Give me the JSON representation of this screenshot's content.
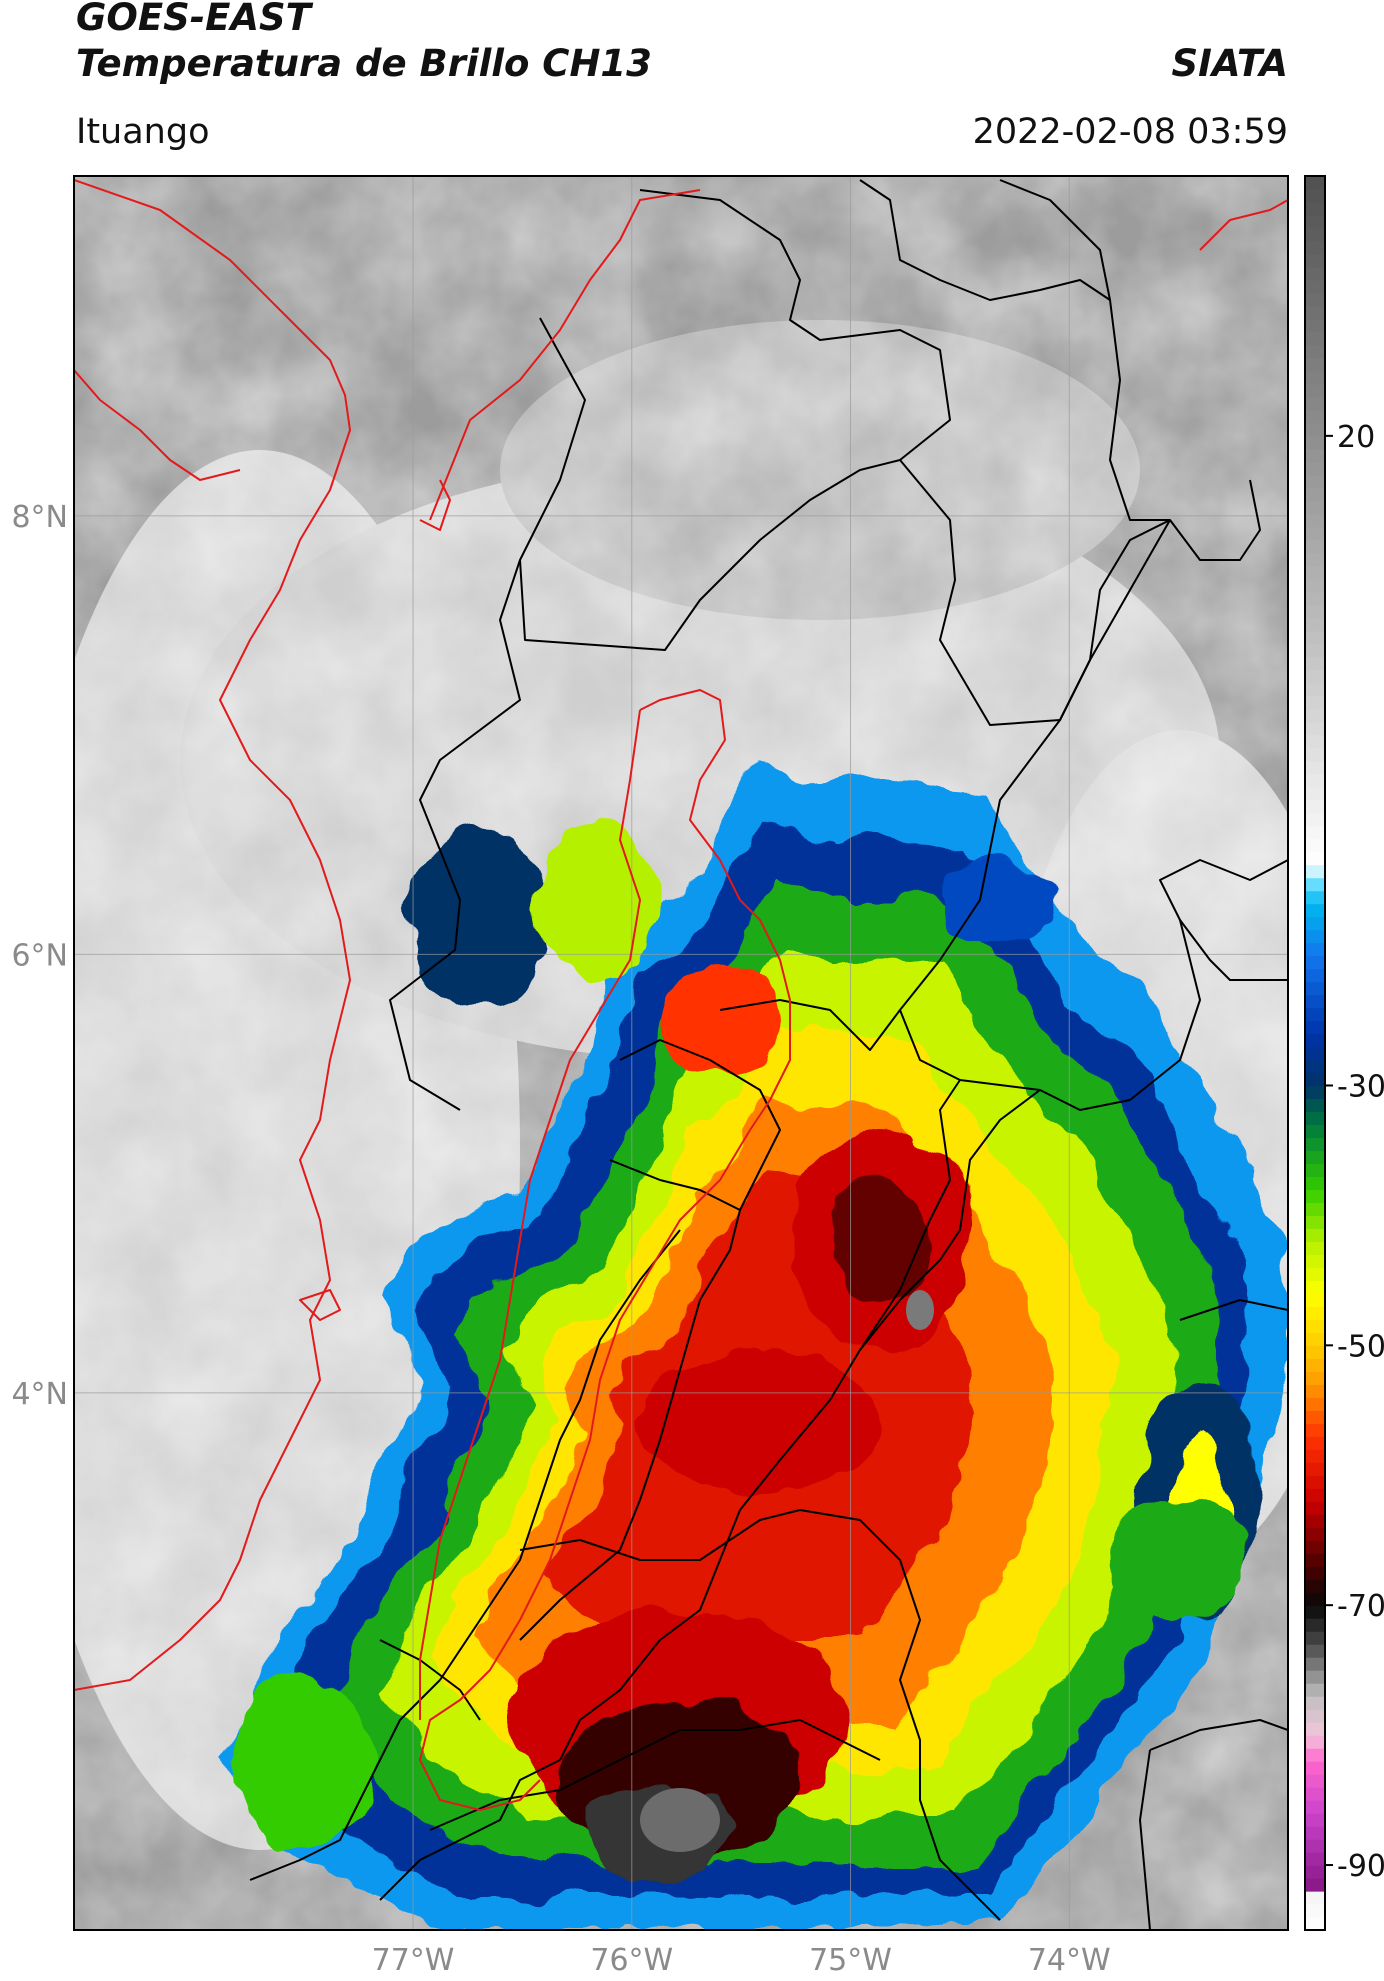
{
  "header": {
    "title_line1": "GOES-EAST",
    "title_line2": "Temperatura de Brillo CH13",
    "organization": "SIATA",
    "location": "Ituango",
    "datetime": "2022-02-08 03:59"
  },
  "map": {
    "lat_ticks": [
      {
        "value": 8,
        "label": "8°N"
      },
      {
        "value": 6,
        "label": "6°N"
      },
      {
        "value": 4,
        "label": "4°N"
      }
    ],
    "lon_ticks": [
      {
        "value": -77,
        "label": "77°W"
      },
      {
        "value": -76,
        "label": "76°W"
      },
      {
        "value": -75,
        "label": "75°W"
      },
      {
        "value": -74,
        "label": "74°W"
      }
    ],
    "lon_range": [
      -78.55,
      -73.0
    ],
    "lat_range": [
      1.55,
      9.55
    ],
    "grid": true,
    "colors": {
      "country_border": "#e31a1c",
      "department_border": "#000000",
      "gridline": "#9a9a9a"
    }
  },
  "colorbar": {
    "range": [
      -95,
      40
    ],
    "ticks": [
      {
        "value": 20,
        "label": "20"
      },
      {
        "value": -30,
        "label": "-30"
      },
      {
        "value": -50,
        "label": "-50"
      },
      {
        "value": -70,
        "label": "-70"
      },
      {
        "value": -90,
        "label": "-90"
      }
    ],
    "stops": [
      {
        "value": -95,
        "color": "#ffffff"
      },
      {
        "value": -92.5,
        "color": "#f6f6f6"
      },
      {
        "value": -91.5,
        "color": "#8b1a8b"
      },
      {
        "value": -86,
        "color": "#cc44cc"
      },
      {
        "value": -82,
        "color": "#ff66cc"
      },
      {
        "value": -80,
        "color": "#f2c6da"
      },
      {
        "value": -77,
        "color": "#bfbfbf"
      },
      {
        "value": -73,
        "color": "#4a4a4a"
      },
      {
        "value": -70,
        "color": "#080808"
      },
      {
        "value": -67,
        "color": "#4a0000"
      },
      {
        "value": -62,
        "color": "#cc0000"
      },
      {
        "value": -57,
        "color": "#ff3300"
      },
      {
        "value": -53,
        "color": "#ff9900"
      },
      {
        "value": -50,
        "color": "#ffcc00"
      },
      {
        "value": -46,
        "color": "#ffff00"
      },
      {
        "value": -42,
        "color": "#b5f000"
      },
      {
        "value": -38,
        "color": "#33cc00"
      },
      {
        "value": -33,
        "color": "#007a3d"
      },
      {
        "value": -30,
        "color": "#003366"
      },
      {
        "value": -26,
        "color": "#0033aa"
      },
      {
        "value": -20,
        "color": "#1177ee"
      },
      {
        "value": -16,
        "color": "#00b8f0"
      },
      {
        "value": -14.5,
        "color": "#66ddff"
      },
      {
        "value": -13,
        "color": "#ffffff"
      },
      {
        "value": 5,
        "color": "#bebebe"
      },
      {
        "value": 40,
        "color": "#505050"
      }
    ]
  }
}
